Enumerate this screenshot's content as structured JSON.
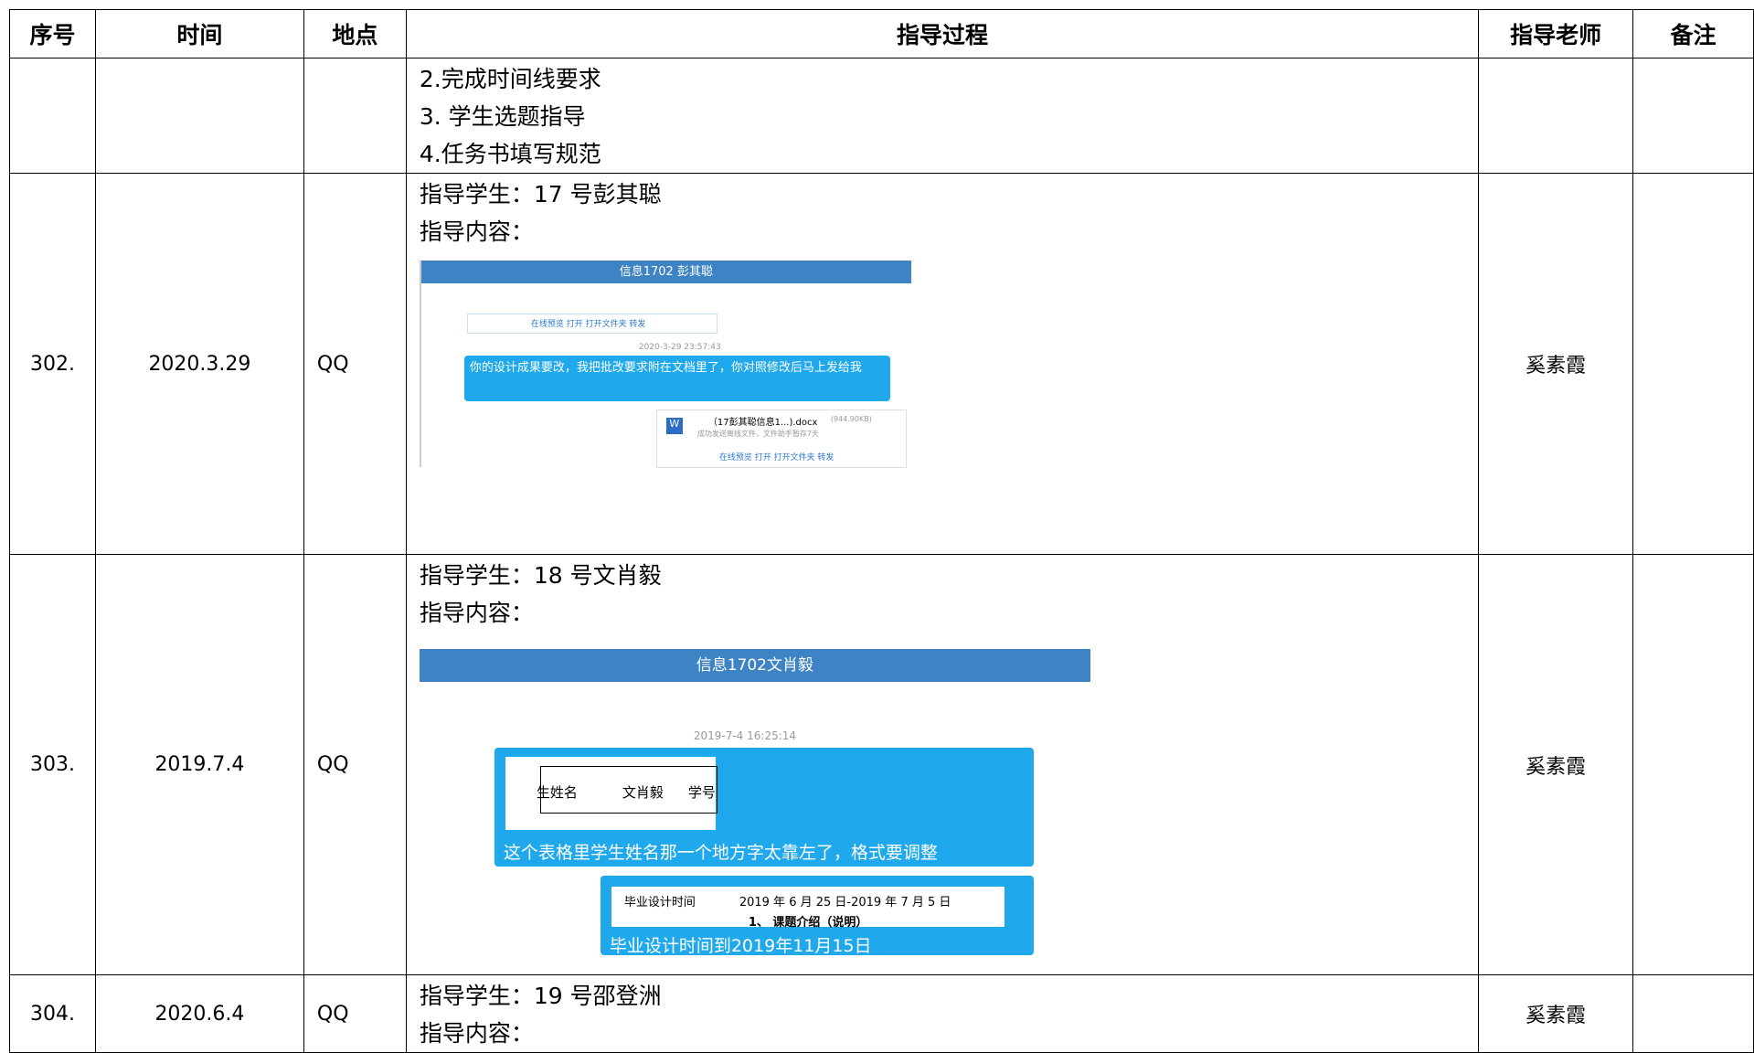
{
  "table": {
    "header": [
      "序号",
      "时间",
      "地点",
      "指导过程",
      "指导老师",
      "备注"
    ],
    "rows": [
      {
        "process": [
          "2.完成时间线要求",
          "3.  学生选题指导",
          "4.任务书填写规范"
        ]
      },
      {
        "no": "302.",
        "date": "2020.3.29",
        "place": "QQ",
        "student": "指导学生：17 号彭其聪",
        "content": "指导内容：",
        "teacher": "奚素霞",
        "screenshot": {
          "title": "信息1702 彭其聪",
          "links": "在线预览   打开   打开文件夹   转发",
          "time": "2020-3-29 23:57:43",
          "message": "你的设计成果要改，我把批改要求附在文档里了，你对照修改后马上发给我",
          "file": "（17彭其聪信息1...).docx",
          "size": "(944.90KB)",
          "status": "成功发送离线文件，文件助手暂存7天"
        }
      },
      {
        "no": "303.",
        "date": "2019.7.4",
        "place": "QQ",
        "student": "指导学生：18 号文肖毅",
        "content": "指导内容：",
        "teacher": "奚素霞",
        "screenshot": {
          "title": "信息1702文肖毅",
          "time": "2019-7-4 16:25:14",
          "cells": [
            "生姓名",
            "文肖毅",
            "学号"
          ],
          "message1": "这个表格里学生姓名那一个地方字太靠左了，格式要调整",
          "cells2": [
            "毕业设计时间",
            "2019 年 6 月 25 日-2019 年 7 月 5 日",
            "1、 课题介绍（说明）"
          ],
          "message2": "毕业设计时间到2019年11月15日"
        }
      },
      {
        "no": "304.",
        "date": "2020.6.4",
        "place": "QQ",
        "student": "指导学生：19 号邵登洲",
        "content": "指导内容：",
        "teacher": "奚素霞"
      }
    ]
  }
}
